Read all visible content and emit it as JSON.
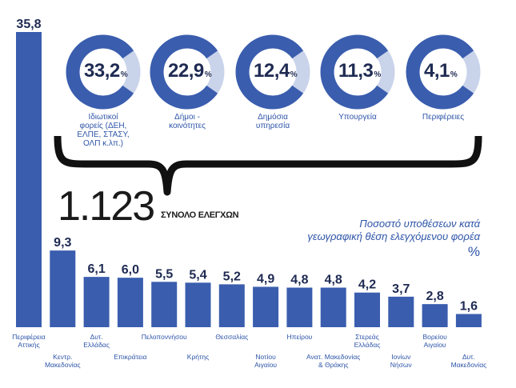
{
  "rings": [
    {
      "value": "33,2",
      "pct": "%",
      "label_lines": [
        "Ιδιωτικοί",
        "φορείς (ΔΕΗ,",
        "ΕΛΠΕ, ΣΤΑΣΥ,",
        "ΟΛΠ κ.λπ.)"
      ],
      "fraction": 0.332
    },
    {
      "value": "22,9",
      "pct": "%",
      "label_lines": [
        "Δήμοι -",
        "κοινότητες"
      ],
      "fraction": 0.229
    },
    {
      "value": "12,4",
      "pct": "%",
      "label_lines": [
        "Δημόσια",
        "υπηρεσία"
      ],
      "fraction": 0.124
    },
    {
      "value": "11,3",
      "pct": "%",
      "label_lines": [
        "Υπουργεία"
      ],
      "fraction": 0.113
    },
    {
      "value": "4,1",
      "pct": "%",
      "label_lines": [
        "Περιφέρειες"
      ],
      "fraction": 0.041
    }
  ],
  "total": {
    "value": "1.123",
    "label": "ΣΥΝΟΛΟ ΕΛΕΓΧΩΝ"
  },
  "legend": {
    "title_line1": "Ποσοστό υποθέσεων κατά",
    "title_line2": "γεωγραφική θέση ελεγχόμενου φορέα",
    "unit": "%"
  },
  "colors": {
    "bar": "#3a5dae",
    "ring": "#3a5dae",
    "ring_light": "#c9d3ea",
    "text_dark": "#1e2a52"
  },
  "chart_data": {
    "type": "bar",
    "title": "Ποσοστό υποθέσεων κατά γεωγραφική θέση ελεγχόμενου φορέα",
    "ylabel": "%",
    "categories": [
      "Περιφέρεια Αττικής",
      "Κεντρ. Μακεδονίας",
      "Δυτ. Ελλάδας",
      "Επικράτεια",
      "Πελοποννήσου",
      "Κρήτης",
      "Θεσσαλίας",
      "Νοτίου Αιγαίου",
      "Ηπείρου",
      "Ανατ. Μακεδονίας & Θράκης",
      "Στερεάς Ελλάδας",
      "Ιονίων Νήσων",
      "Βορείου Αιγαίου",
      "Δυτ. Μακεδονίας"
    ],
    "values": [
      35.8,
      9.3,
      6.1,
      6.0,
      5.5,
      5.4,
      5.2,
      4.9,
      4.8,
      4.8,
      4.2,
      3.7,
      2.8,
      1.6
    ],
    "value_labels": [
      "35,8",
      "9,3",
      "6,1",
      "6,0",
      "5,5",
      "5,4",
      "5,2",
      "4,9",
      "4,8",
      "4,8",
      "4,2",
      "3,7",
      "2,8",
      "1,6"
    ],
    "label_lines": [
      [
        "Περιφέρεια",
        "Αττικής"
      ],
      [
        "Κεντρ.",
        "Μακεδονίας"
      ],
      [
        "Δυτ.",
        "Ελλάδας"
      ],
      [
        "Επικράτεια"
      ],
      [
        "Πελοποννήσου"
      ],
      [
        "Κρήτης"
      ],
      [
        "Θεσσαλίας"
      ],
      [
        "Νοτίου",
        "Αιγαίου"
      ],
      [
        "Ηπείρου"
      ],
      [
        "Ανατ. Μακεδονίας",
        "& Θράκης"
      ],
      [
        "Στερεάς",
        "Ελλάδας"
      ],
      [
        "Ιονίων",
        "Νήσων"
      ],
      [
        "Βορείου",
        "Αιγαίου"
      ],
      [
        "Δυτ.",
        "Μακεδονίας"
      ]
    ],
    "ylim": [
      0,
      36
    ]
  }
}
